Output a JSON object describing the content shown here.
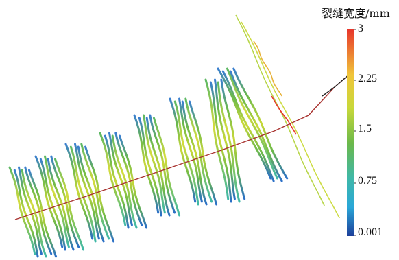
{
  "colorbar": {
    "title": "裂缝宽度/mm",
    "ticks": [
      {
        "value": 3,
        "label": "3"
      },
      {
        "value": 2.25,
        "label": "2.25"
      },
      {
        "value": 1.5,
        "label": "1.5"
      },
      {
        "value": 0.75,
        "label": "0.75"
      },
      {
        "value": 0.001,
        "label": "0.001"
      }
    ],
    "colors": [
      "#e8362b",
      "#f0c53a",
      "#c8d83a",
      "#6cb94a",
      "#3fb8a8",
      "#2aa7d8",
      "#1d5fb0"
    ]
  },
  "wellbore_color": "#a8322f",
  "wellbore_tip_color": "#222222"
}
